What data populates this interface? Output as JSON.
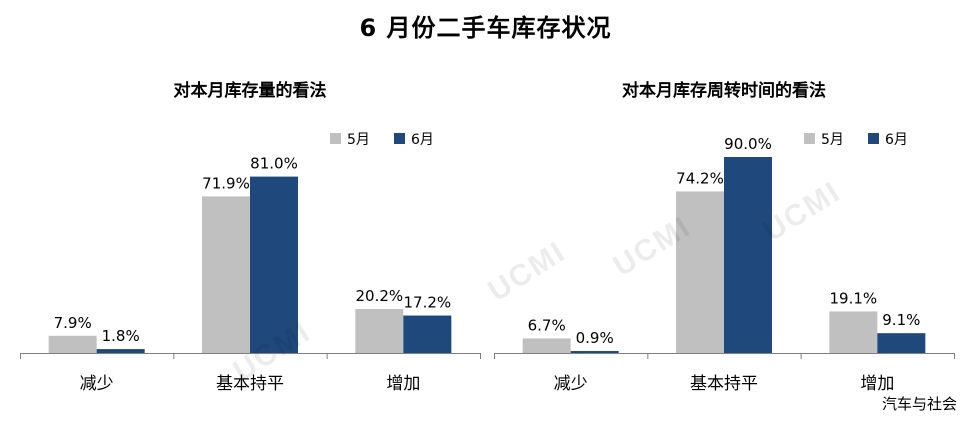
{
  "page": {
    "title": "6 月份二手车库存状况",
    "watermark": "UCMI",
    "brand": "汽车与社会"
  },
  "colors": {
    "may": "#c0c0c0",
    "june": "#1f497d",
    "axis": "#7f7f7f"
  },
  "chart_data": [
    {
      "type": "bar",
      "title": "对本月库存量的看法",
      "categories": [
        "减少",
        "基本持平",
        "增加"
      ],
      "series": [
        {
          "name": "5月",
          "values": [
            7.9,
            71.9,
            20.2
          ]
        },
        {
          "name": "6月",
          "values": [
            1.8,
            81.0,
            17.2
          ]
        }
      ],
      "ylim": [
        0,
        90
      ],
      "value_format": "percent_1dp",
      "grid": false,
      "legend": "top-right"
    },
    {
      "type": "bar",
      "title": "对本月库存周转时间的看法",
      "categories": [
        "减少",
        "基本持平",
        "增加"
      ],
      "series": [
        {
          "name": "5月",
          "values": [
            6.7,
            74.2,
            19.1
          ]
        },
        {
          "name": "6月",
          "values": [
            0.9,
            90.0,
            9.1
          ]
        }
      ],
      "ylim": [
        0,
        90
      ],
      "value_format": "percent_1dp",
      "grid": false,
      "legend": "top-right"
    }
  ]
}
